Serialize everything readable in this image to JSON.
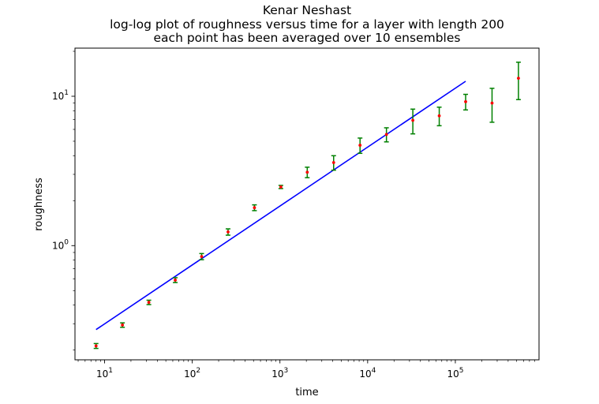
{
  "chart_data": {
    "type": "scatter",
    "title": [
      "Kenar Neshast",
      "log-log plot of roughness versus time for a layer with length 200",
      "each point has been averaged over 10 ensembles"
    ],
    "xlabel": "time",
    "ylabel": "roughness",
    "xscale": "log",
    "yscale": "log",
    "xlim": [
      4.6,
      900000
    ],
    "ylim": [
      0.172,
      21
    ],
    "x_ticks": [
      {
        "base": "10",
        "exp": "1",
        "value": 10
      },
      {
        "base": "10",
        "exp": "2",
        "value": 100
      },
      {
        "base": "10",
        "exp": "3",
        "value": 1000
      },
      {
        "base": "10",
        "exp": "4",
        "value": 10000
      },
      {
        "base": "10",
        "exp": "5",
        "value": 100000
      }
    ],
    "y_ticks": [
      {
        "base": "10",
        "exp": "0",
        "value": 1
      },
      {
        "base": "10",
        "exp": "1",
        "value": 10
      }
    ],
    "grid": false,
    "legend": "none",
    "colors": {
      "points": "#ff0000",
      "errorbars": "#008000",
      "fit": "#0000ff"
    },
    "series": [
      {
        "kind": "errorbar",
        "x": [
          8,
          16,
          32,
          64,
          128,
          256,
          512,
          1024,
          2048,
          4096,
          8192,
          16384,
          32768,
          65536,
          131072,
          262144,
          524288
        ],
        "y": [
          0.213,
          0.294,
          0.417,
          0.588,
          0.845,
          1.235,
          1.795,
          2.47,
          3.1,
          3.6,
          4.7,
          5.55,
          6.9,
          7.4,
          9.2,
          9.0,
          13.2
        ],
        "yerr": [
          0.008,
          0.01,
          0.014,
          0.022,
          0.04,
          0.06,
          0.08,
          0.06,
          0.25,
          0.4,
          0.55,
          0.6,
          1.3,
          1.05,
          1.1,
          2.3,
          3.7
        ]
      },
      {
        "kind": "line",
        "x": [
          8,
          131072
        ],
        "y": [
          0.274,
          12.6
        ]
      }
    ]
  }
}
